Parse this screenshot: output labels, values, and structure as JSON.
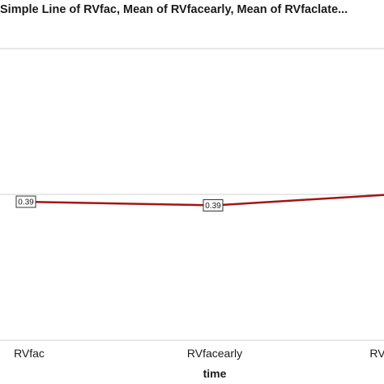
{
  "chart_data": {
    "type": "line",
    "title": "Simple Line of RVfac, Mean of RVfacearly, Mean of RVfaclate...",
    "xlabel": "time",
    "ylabel": "",
    "categories": [
      "RVfac",
      "RVfacearly",
      "RVfaclate"
    ],
    "visible_tick_labels": [
      "RVfac",
      "RVfacearly",
      "RV"
    ],
    "series": [
      {
        "values": [
          0.39,
          0.385,
          0.4
        ],
        "data_labels": [
          "0.39",
          "0.39",
          ""
        ]
      }
    ],
    "ylim": [
      0.2,
      0.6
    ],
    "grid": "horizontal",
    "legend": "none",
    "line_color": "#a31515",
    "grid_color": "#d0d0d0"
  }
}
